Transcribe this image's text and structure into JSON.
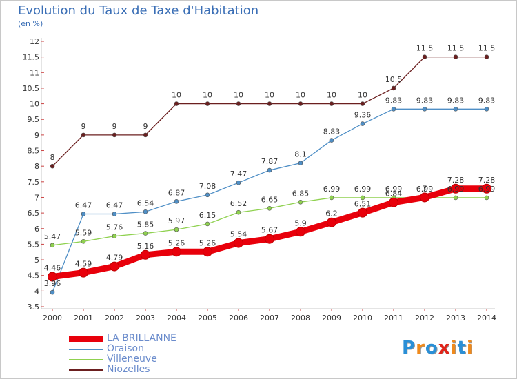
{
  "title": "Evolution du Taux de Taxe d'Habitation",
  "subtitle": "(en %)",
  "logo": {
    "text": "Proxiti",
    "colors": [
      "#2a8fd6",
      "#f08a1c",
      "#2a8fd6",
      "#e0241a",
      "#f08a1c",
      "#2a8fd6",
      "#f08a1c"
    ]
  },
  "chart_data": {
    "type": "line",
    "x": [
      2000,
      2001,
      2002,
      2003,
      2004,
      2005,
      2006,
      2007,
      2008,
      2009,
      2010,
      2011,
      2012,
      2013,
      2014
    ],
    "ylim": [
      3.5,
      12
    ],
    "yticks": [
      "3.5",
      "4",
      "4.5",
      "5",
      "5.5",
      "6",
      "6.5",
      "7",
      "7.5",
      "8",
      "8.5",
      "9",
      "9.5",
      "10",
      "10.5",
      "11",
      "11.5",
      "12"
    ],
    "grid": false,
    "legend_position": "bottom-left",
    "series": [
      {
        "name": "LA BRILLANNE",
        "color": "#e8000b",
        "values": [
          4.46,
          4.59,
          4.79,
          5.16,
          5.26,
          5.26,
          5.54,
          5.67,
          5.9,
          6.2,
          6.51,
          6.84,
          7,
          7.28,
          7.28
        ],
        "labels": [
          "4.46",
          "4.59",
          "4.79",
          "5.16",
          "5.26",
          "5.26",
          "5.54",
          "5.67",
          "5.9",
          "6.2",
          "6.51",
          "6.84",
          "7",
          "7.28",
          "7.28"
        ]
      },
      {
        "name": "Oraison",
        "color": "#4f8fc6",
        "values": [
          3.96,
          6.47,
          6.47,
          6.54,
          6.87,
          7.08,
          7.47,
          7.87,
          8.1,
          8.83,
          9.36,
          9.83,
          9.83,
          9.83,
          9.83
        ],
        "labels": [
          "3.96",
          "6.47",
          "6.47",
          "6.54",
          "6.87",
          "7.08",
          "7.47",
          "7.87",
          "8.1",
          "8.83",
          "9.36",
          "9.83",
          "9.83",
          "9.83",
          "9.83"
        ]
      },
      {
        "name": "Villeneuve",
        "color": "#8fd14f",
        "values": [
          5.47,
          5.59,
          5.76,
          5.85,
          5.97,
          6.15,
          6.52,
          6.65,
          6.85,
          6.99,
          6.99,
          6.99,
          6.99,
          6.99,
          6.99
        ],
        "labels": [
          "5.47",
          "5.59",
          "5.76",
          "5.85",
          "5.97",
          "6.15",
          "6.52",
          "6.65",
          "6.85",
          "6.99",
          "6.99",
          "6.99",
          "6.99",
          "6.99",
          "6.99"
        ]
      },
      {
        "name": "Niozelles",
        "color": "#6b1f1f",
        "values": [
          8,
          9,
          9,
          9,
          10,
          10,
          10,
          10,
          10,
          10,
          10,
          10.5,
          11.5,
          11.5,
          11.5
        ],
        "labels": [
          "8",
          "9",
          "9",
          "9",
          "10",
          "10",
          "10",
          "10",
          "10",
          "10",
          "10",
          "10.5",
          "11.5",
          "11.5",
          "11.5"
        ]
      }
    ]
  }
}
